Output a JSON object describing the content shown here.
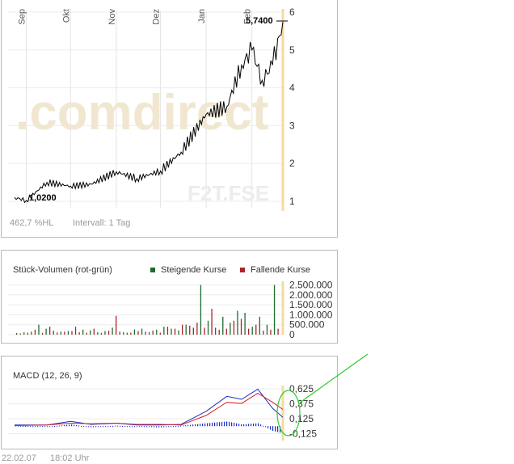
{
  "watermark": {
    "logo_text": ".comdirect",
    "symbol": "F2T.FSE"
  },
  "price_panel": {
    "months": [
      "Sep",
      "Okt",
      "Nov",
      "Dez",
      "Jan",
      "Feb"
    ],
    "y_ticks": [
      "6",
      "5",
      "4",
      "3",
      "2",
      "1"
    ],
    "last_value_label": "5,7400",
    "first_value_label": "1,0200",
    "footer_change": "462,7 %HL",
    "footer_interval": "Intervall: 1 Tag"
  },
  "volume_panel": {
    "title": "Stück-Volumen (rot-grün)",
    "legend_up": "Steigende Kurse",
    "legend_down": "Fallende Kurse",
    "y_ticks": [
      "2.500.000",
      "2.000.000",
      "1.500.000",
      "1.000.000",
      "500.000",
      "0"
    ]
  },
  "macd_panel": {
    "title": "MACD (12, 26, 9)",
    "y_ticks": [
      "0,625",
      "0,375",
      "0,125",
      "-0,125"
    ]
  },
  "footer": {
    "date": "22.02.07",
    "time": "18:02 Uhr"
  },
  "colors": {
    "up": "#1f6b2c",
    "down": "#b0202a",
    "price_line": "#000000",
    "macd": "#1a2ec8",
    "signal": "#d42020",
    "highlight": "#2ecc2e",
    "today_marker": "#f5d9a0"
  },
  "chart_data": [
    {
      "type": "line",
      "title": "",
      "x": [
        "2006-08-24",
        "2006-09-01",
        "2006-09-15",
        "2006-10-01",
        "2006-10-15",
        "2006-11-01",
        "2006-11-15",
        "2006-12-01",
        "2006-12-15",
        "2007-01-01",
        "2007-01-15",
        "2007-01-25",
        "2007-02-01",
        "2007-02-08",
        "2007-02-15",
        "2007-02-22"
      ],
      "series": [
        {
          "values": [
            1.1,
            1.02,
            1.5,
            1.4,
            1.45,
            1.78,
            1.6,
            1.8,
            2.3,
            3.3,
            3.5,
            4.6,
            5.0,
            4.2,
            4.6,
            5.74
          ]
        }
      ],
      "ylim": [
        0.8,
        6.2
      ],
      "grid": true
    },
    {
      "type": "bar",
      "title": "Stück-Volumen (rot-grün)",
      "series": [
        {
          "name": "Steigende Kurse",
          "values": [
            80000,
            120000,
            150000,
            500000,
            300000,
            200000,
            150000,
            180000,
            400000,
            250000,
            220000,
            120000,
            180000,
            350000,
            150000,
            100000,
            260000,
            300000,
            120000,
            250000,
            400000,
            300000,
            220000,
            500000,
            350000,
            2500000,
            700000,
            350000,
            900000,
            600000,
            1200000,
            1100000,
            400000,
            900000,
            500000,
            2500000
          ]
        },
        {
          "name": "Fallende Kurse",
          "values": [
            60000,
            100000,
            250000,
            90000,
            400000,
            110000,
            150000,
            180000,
            120000,
            100000,
            300000,
            90000,
            200000,
            950000,
            120000,
            100000,
            180000,
            150000,
            200000,
            100000,
            400000,
            300000,
            500000,
            450000,
            600000,
            350000,
            1300000,
            250000,
            300000,
            700000,
            800000,
            300000,
            500000,
            200000,
            250000,
            300000
          ]
        }
      ],
      "ylim": [
        0,
        2600000
      ]
    },
    {
      "type": "line",
      "title": "MACD (12, 26, 9)",
      "x": [
        "2006-08-24",
        "2006-09-15",
        "2006-10-01",
        "2006-10-15",
        "2006-11-01",
        "2006-11-15",
        "2006-12-01",
        "2006-12-15",
        "2007-01-01",
        "2007-01-15",
        "2007-01-25",
        "2007-02-05",
        "2007-02-15",
        "2007-02-22"
      ],
      "series": [
        {
          "values": [
            0.02,
            0.02,
            0.08,
            0.03,
            0.05,
            0.02,
            0.02,
            0.03,
            0.25,
            0.5,
            0.45,
            0.62,
            0.3,
            0.15
          ]
        },
        {
          "values": [
            0.01,
            0.02,
            0.05,
            0.04,
            0.05,
            0.03,
            0.03,
            0.02,
            0.18,
            0.4,
            0.38,
            0.55,
            0.4,
            0.28
          ]
        }
      ],
      "histogram": [
        0.01,
        -0.01,
        0.03,
        -0.02,
        0.01,
        -0.01,
        -0.02,
        0.01,
        0.05,
        0.08,
        0.03,
        0.05,
        -0.08,
        -0.12
      ],
      "ylim": [
        -0.2,
        0.7
      ]
    }
  ]
}
